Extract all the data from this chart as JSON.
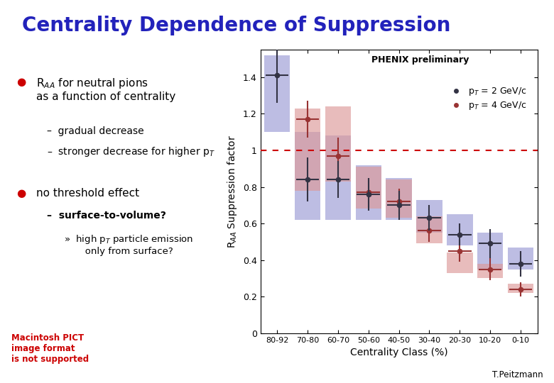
{
  "title": "Centrality Dependence of Suppression",
  "title_color": "#2222bb",
  "bg_color": "#ffffff",
  "categories": [
    "80-92",
    "70-80",
    "60-70",
    "50-60",
    "40-50",
    "30-40",
    "20-30",
    "10-20",
    "0-10"
  ],
  "xlabel": "Centrality Class (%)",
  "ylabel": "R$_{AA}$ Suppression factor",
  "ylim": [
    0,
    1.55
  ],
  "yticks": [
    0,
    0.2,
    0.4,
    0.6,
    0.8,
    1.0,
    1.2,
    1.4
  ],
  "pt2_values": [
    1.41,
    0.84,
    0.84,
    0.76,
    0.7,
    0.63,
    0.54,
    0.49,
    0.38
  ],
  "pt2_err_y": [
    0.15,
    0.12,
    0.1,
    0.09,
    0.08,
    0.07,
    0.06,
    0.08,
    0.07
  ],
  "pt2_box_lo": [
    1.1,
    0.62,
    0.62,
    0.62,
    0.62,
    0.55,
    0.48,
    0.35,
    0.35
  ],
  "pt2_box_hi": [
    1.52,
    1.1,
    1.08,
    0.92,
    0.85,
    0.73,
    0.65,
    0.55,
    0.47
  ],
  "pt4_values": [
    null,
    1.17,
    0.97,
    0.77,
    0.72,
    0.56,
    0.45,
    0.35,
    0.24
  ],
  "pt4_err_y": [
    null,
    0.1,
    0.1,
    0.08,
    0.07,
    0.06,
    0.06,
    0.06,
    0.04
  ],
  "pt4_box_lo": [
    null,
    0.78,
    0.83,
    0.68,
    0.63,
    0.49,
    0.33,
    0.3,
    0.22
  ],
  "pt4_box_hi": [
    null,
    1.23,
    1.24,
    0.91,
    0.84,
    0.64,
    0.44,
    0.38,
    0.27
  ],
  "pt2_color": "#333344",
  "pt2_box_color": "#8888cc",
  "pt4_color": "#993333",
  "pt4_box_color": "#dd9999",
  "bullet_color": "#cc0000",
  "ref_line_y": 1.0,
  "ref_line_color": "#cc0000",
  "phenix_label": "PHENIX preliminary",
  "legend_pt2": "p$_T$ = 2 GeV/c",
  "legend_pt4": "p$_T$ = 4 GeV/c",
  "macintosh_text": "Macintosh PICT\nimage format\nis not supported",
  "macintosh_color": "#cc0000",
  "author_text": "T.Peitzmann",
  "author_color": "#000000"
}
